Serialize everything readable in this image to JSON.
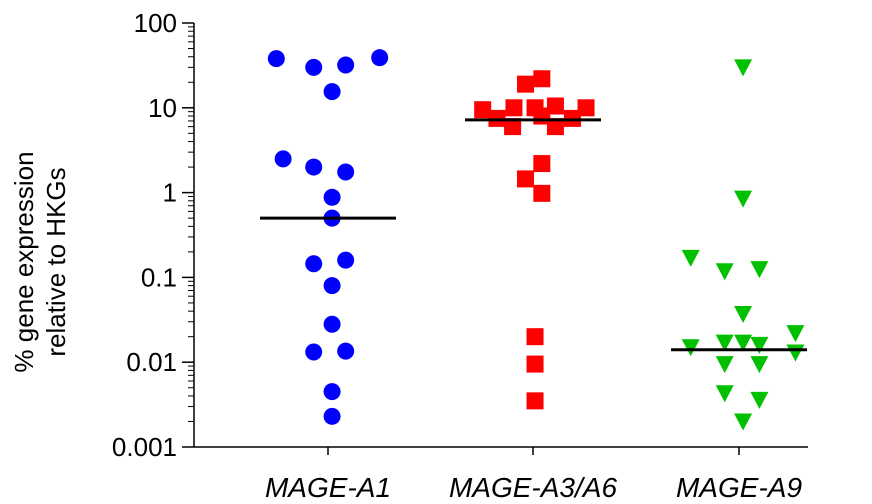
{
  "chart_data": {
    "type": "scatter",
    "title": "",
    "ylabel_lines": [
      "% gene expression",
      "relative to HKGs"
    ],
    "xlabel": "",
    "yscale": "log",
    "ylim": [
      0.001,
      100
    ],
    "yticks": [
      {
        "value": 0.001,
        "label": "0.001"
      },
      {
        "value": 0.01,
        "label": "0.01"
      },
      {
        "value": 0.1,
        "label": "0.1"
      },
      {
        "value": 1,
        "label": "1"
      },
      {
        "value": 10,
        "label": "10"
      },
      {
        "value": 100,
        "label": "100"
      }
    ],
    "grid": false,
    "legend": "none",
    "categories": [
      "MAGE-A1",
      "MAGE-A3/A6",
      "MAGE-A9"
    ],
    "series": [
      {
        "category": "MAGE-A1",
        "marker": "circle",
        "color": "#0000ff",
        "median": 0.5,
        "points": [
          {
            "x": -0.76,
            "y": 38
          },
          {
            "x": -0.21,
            "y": 30
          },
          {
            "x": 0.26,
            "y": 32
          },
          {
            "x": 0.76,
            "y": 39
          },
          {
            "x": 0.06,
            "y": 15.5
          },
          {
            "x": -0.66,
            "y": 2.5
          },
          {
            "x": -0.21,
            "y": 2.0
          },
          {
            "x": 0.26,
            "y": 1.75
          },
          {
            "x": 0.06,
            "y": 0.88
          },
          {
            "x": 0.06,
            "y": 0.5
          },
          {
            "x": -0.21,
            "y": 0.145
          },
          {
            "x": 0.26,
            "y": 0.16
          },
          {
            "x": 0.06,
            "y": 0.08
          },
          {
            "x": 0.06,
            "y": 0.028
          },
          {
            "x": -0.21,
            "y": 0.0132
          },
          {
            "x": 0.26,
            "y": 0.0135
          },
          {
            "x": 0.06,
            "y": 0.0045
          },
          {
            "x": 0.06,
            "y": 0.0023
          }
        ]
      },
      {
        "category": "MAGE-A3/A6",
        "marker": "square",
        "color": "#ff0000",
        "median": 7.2,
        "points": [
          {
            "x": -0.11,
            "y": 19
          },
          {
            "x": 0.13,
            "y": 22
          },
          {
            "x": -0.74,
            "y": 9.5
          },
          {
            "x": -0.28,
            "y": 10
          },
          {
            "x": 0.03,
            "y": 10
          },
          {
            "x": 0.33,
            "y": 10.5
          },
          {
            "x": 0.78,
            "y": 10
          },
          {
            "x": -0.53,
            "y": 7.5
          },
          {
            "x": -0.3,
            "y": 6.0
          },
          {
            "x": 0.13,
            "y": 8.0
          },
          {
            "x": 0.33,
            "y": 6.0
          },
          {
            "x": 0.58,
            "y": 7.5
          },
          {
            "x": 0.13,
            "y": 2.2
          },
          {
            "x": -0.11,
            "y": 1.45
          },
          {
            "x": 0.13,
            "y": 0.98
          },
          {
            "x": 0.03,
            "y": 0.02
          },
          {
            "x": 0.03,
            "y": 0.0095
          },
          {
            "x": 0.03,
            "y": 0.0035
          }
        ]
      },
      {
        "category": "MAGE-A9",
        "marker": "triangle-down",
        "color": "#00c000",
        "median": 0.014,
        "points": [
          {
            "x": 0.06,
            "y": 30
          },
          {
            "x": 0.06,
            "y": 0.85
          },
          {
            "x": -0.71,
            "y": 0.17
          },
          {
            "x": -0.21,
            "y": 0.118
          },
          {
            "x": 0.3,
            "y": 0.125
          },
          {
            "x": 0.06,
            "y": 0.037
          },
          {
            "x": 0.83,
            "y": 0.022
          },
          {
            "x": -0.71,
            "y": 0.015
          },
          {
            "x": -0.21,
            "y": 0.017
          },
          {
            "x": 0.06,
            "y": 0.017
          },
          {
            "x": 0.3,
            "y": 0.016
          },
          {
            "x": 0.83,
            "y": 0.013
          },
          {
            "x": -0.21,
            "y": 0.0095
          },
          {
            "x": 0.3,
            "y": 0.0095
          },
          {
            "x": -0.21,
            "y": 0.0043
          },
          {
            "x": 0.3,
            "y": 0.0036
          },
          {
            "x": 0.06,
            "y": 0.002
          }
        ]
      }
    ]
  }
}
